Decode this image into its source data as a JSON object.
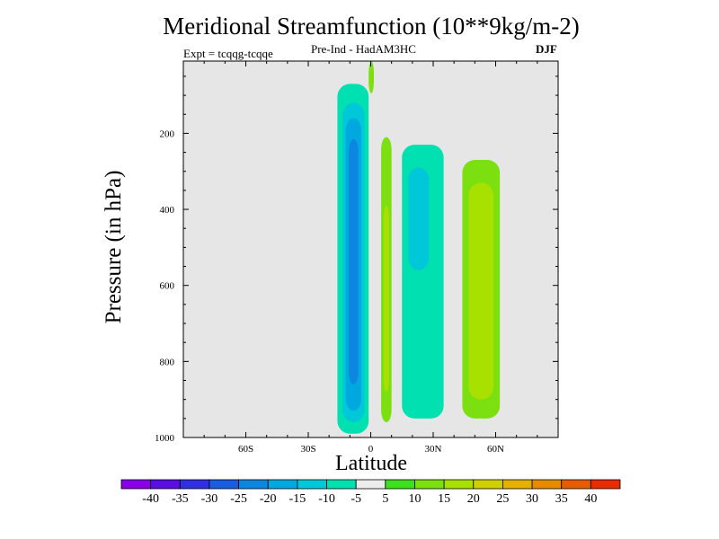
{
  "chart_data": {
    "type": "heatmap",
    "title": "Meridional Streamfunction (10**9kg/m-2)",
    "subtitle_left": "Expt = tcqqg-tcqqe",
    "subtitle_center": "Pre-Ind - HadAM3HC",
    "subtitle_right": "DJF",
    "xlabel": "Latitude",
    "ylabel": "Pressure (in hPa)",
    "xlim": [
      -90,
      90
    ],
    "ylim": [
      1000,
      10
    ],
    "x_ticks": [
      {
        "value": -60,
        "label": "60S"
      },
      {
        "value": -30,
        "label": "30S"
      },
      {
        "value": 0,
        "label": "0"
      },
      {
        "value": 30,
        "label": "30N"
      },
      {
        "value": 60,
        "label": "60N"
      }
    ],
    "y_ticks": [
      {
        "value": 200,
        "label": "200"
      },
      {
        "value": 400,
        "label": "400"
      },
      {
        "value": 600,
        "label": "600"
      },
      {
        "value": 800,
        "label": "800"
      },
      {
        "value": 1000,
        "label": "1000"
      }
    ],
    "colorbar": {
      "labels": [
        "-40",
        "-35",
        "-30",
        "-25",
        "-20",
        "-15",
        "-10",
        "-5",
        "5",
        "10",
        "15",
        "20",
        "25",
        "30",
        "35",
        "40"
      ],
      "colors": [
        "#8a00e6",
        "#5a0fe0",
        "#3030e0",
        "#1a5ee0",
        "#0d86e0",
        "#00a8e0",
        "#00c8d8",
        "#00e0b0",
        "#ececec",
        "#3ce01c",
        "#7ce010",
        "#a8e000",
        "#d0d000",
        "#e6b000",
        "#e68a00",
        "#e65c00",
        "#e62c00"
      ]
    },
    "features": [
      {
        "name": "southern-cell-outer",
        "level": -10,
        "lat": [
          -16,
          -1
        ],
        "p": [
          70,
          990
        ]
      },
      {
        "name": "southern-cell-mid",
        "level": -15,
        "lat": [
          -13.5,
          -3
        ],
        "p": [
          120,
          960
        ]
      },
      {
        "name": "southern-cell-core",
        "level": -20,
        "lat": [
          -12,
          -4.5
        ],
        "p": [
          160,
          930
        ]
      },
      {
        "name": "southern-cell-max",
        "level": -25,
        "lat": [
          -10.5,
          -6
        ],
        "p": [
          215,
          860
        ]
      },
      {
        "name": "equatorial-jet-top",
        "level": 10,
        "lat": [
          -1,
          1.5
        ],
        "p": [
          10,
          95
        ]
      },
      {
        "name": "equatorial-band",
        "level": 10,
        "lat": [
          5,
          10
        ],
        "p": [
          210,
          960
        ]
      },
      {
        "name": "equatorial-band-core",
        "level": 15,
        "lat": [
          6.2,
          8.8
        ],
        "p": [
          390,
          880
        ]
      },
      {
        "name": "tropical-north-cell",
        "level": -10,
        "lat": [
          15,
          35
        ],
        "p": [
          230,
          950
        ]
      },
      {
        "name": "tropical-north-core",
        "level": -15,
        "lat": [
          18,
          28
        ],
        "p": [
          290,
          560
        ]
      },
      {
        "name": "subtropical-north-cell",
        "level": 10,
        "lat": [
          44,
          62
        ],
        "p": [
          270,
          950
        ]
      },
      {
        "name": "subtropical-north-core",
        "level": 15,
        "lat": [
          47,
          59
        ],
        "p": [
          330,
          900
        ]
      }
    ]
  }
}
